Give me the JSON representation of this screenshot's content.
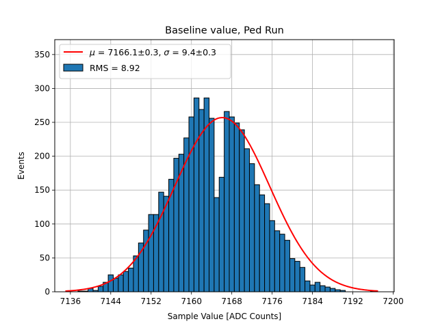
{
  "chart_data": {
    "type": "bar",
    "title": "Baseline value, Ped Run",
    "xlabel": "Sample Value [ADC Counts]",
    "ylabel": "Events",
    "xlim": [
      7132.9,
      7200.2
    ],
    "ylim": [
      0,
      372
    ],
    "xticks": [
      7136,
      7144,
      7152,
      7160,
      7168,
      7176,
      7184,
      7192,
      7200
    ],
    "yticks": [
      0,
      50,
      100,
      150,
      200,
      250,
      300,
      350
    ],
    "grid": true,
    "legend_position": "top-left",
    "bin_start": 7135.5,
    "bin_width": 1,
    "histogram": {
      "name": "RMS = 8.92",
      "color": "#1f77b4",
      "edge_color": "#000000",
      "values": [
        0,
        0,
        1,
        1,
        5,
        2,
        8,
        14,
        25,
        20,
        25,
        30,
        35,
        53,
        72,
        91,
        114,
        114,
        147,
        141,
        166,
        197,
        203,
        227,
        258,
        286,
        269,
        286,
        256,
        139,
        169,
        266,
        258,
        249,
        239,
        211,
        189,
        158,
        143,
        130,
        105,
        90,
        85,
        76,
        49,
        45,
        36,
        16,
        10,
        14,
        9,
        7,
        5,
        3,
        2,
        0,
        0,
        0,
        0,
        0,
        1,
        0
      ]
    },
    "fit": {
      "name": "$\\mu = 7166.1\\pm0.3$, $\\sigma = 9.4\\pm0.3$",
      "label_parts": {
        "mu_symbol": "μ",
        "mu_text": " = 7166.1±0.3, ",
        "sigma_symbol": "σ",
        "sigma_text": " = 9.4±0.3"
      },
      "color": "#ff0000",
      "mu": 7166.1,
      "sigma": 9.4,
      "amplitude": 257,
      "x_range": [
        7135,
        7197
      ]
    }
  }
}
